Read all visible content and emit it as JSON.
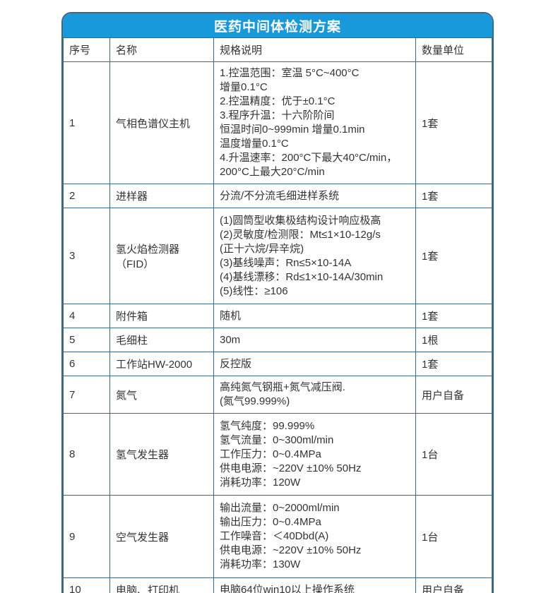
{
  "title": "医药中间体检测方案",
  "colors": {
    "header_bg": "#1899DC",
    "border": "#3C6787",
    "text": "#333333",
    "title_text": "#FFFFFF"
  },
  "table": {
    "columns": [
      "序号",
      "名称",
      "规格说明",
      "数量单位"
    ],
    "rows": [
      {
        "no": "1",
        "name": "气相色谱仪主机",
        "spec": [
          "1.控温范围：室温 5°C~400°C",
          "增量0.1°C",
          "2.控温精度：优于±0.1°C",
          "3.程序升温：十六阶阶间",
          "恒温时间0~999min 增量0.1min",
          "温度增量0.1°C",
          "4.升温速率：200°C下最大40°C/min，",
          "200°C上最大20°C/min"
        ],
        "qty": "1套"
      },
      {
        "no": "2",
        "name": "进样器",
        "spec": [
          "分流/不分流毛细进样系统"
        ],
        "qty": "1套"
      },
      {
        "no": "3",
        "name": "氢火焰检测器（FID）",
        "spec": [
          "(1)圆筒型收集极结构设计响应极高",
          "(2)灵敏度/检测限：Mt≤1×10-12g/s",
          "(正十六烷/异辛烷)",
          "(3)基线噪声：Rn≤5×10-14A",
          "(4)基线漂移：Rd≤1×10-14A/30min",
          "(5)线性：≥106"
        ],
        "qty": "1套"
      },
      {
        "no": "4",
        "name": "附件箱",
        "spec": [
          "随机"
        ],
        "qty": "1套"
      },
      {
        "no": "5",
        "name": "毛细柱",
        "spec": [
          "30m"
        ],
        "qty": "1根"
      },
      {
        "no": "6",
        "name": "工作站HW-2000",
        "spec": [
          "反控版"
        ],
        "qty": "1套"
      },
      {
        "no": "7",
        "name": "氮气",
        "spec": [
          "高纯氮气钢瓶+氮气减压阀.",
          "(氮气99.999%)"
        ],
        "qty": "用户自备"
      },
      {
        "no": "8",
        "name": "氢气发生器",
        "spec": [
          "氢气纯度：99.999%",
          "氢气流量：0~300ml/min",
          "工作压力：0~0.4MPa",
          "供电电源：~220V ±10% 50Hz",
          "消耗功率：120W"
        ],
        "qty": "1台"
      },
      {
        "no": "9",
        "name": "空气发生器",
        "spec": [
          "输出流量：0~2000ml/min",
          "输出压力：0~0.4MPa",
          "工作噪音：＜40Dbd(A)",
          "供电电源：~220V ±10% 50Hz",
          "消耗功率：130W"
        ],
        "qty": "1台"
      },
      {
        "no": "10",
        "name": "电脑、打印机",
        "spec": [
          "电脑64位win10以上操作系统"
        ],
        "qty": "用户自备"
      }
    ]
  }
}
